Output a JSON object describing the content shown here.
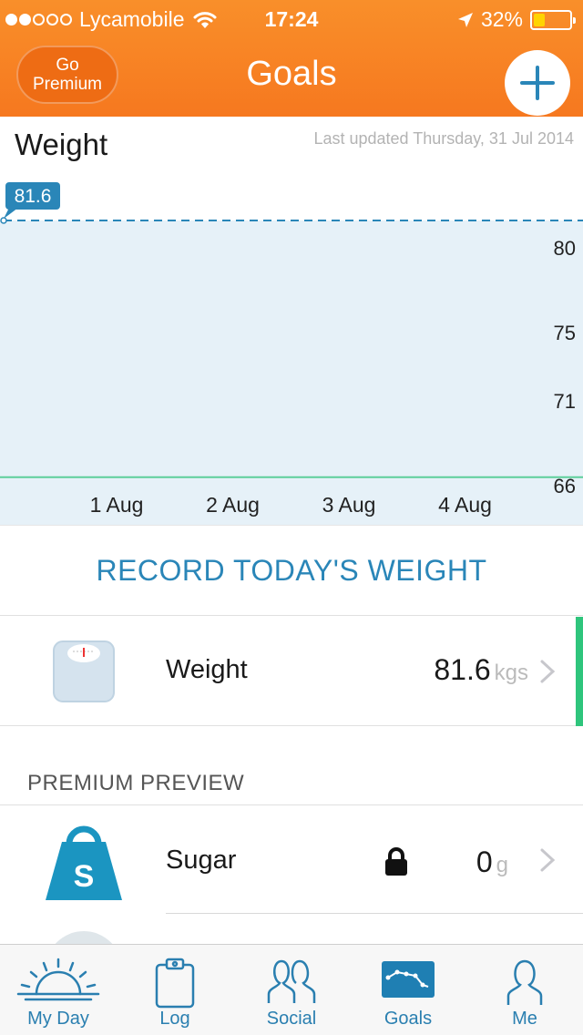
{
  "status_bar": {
    "carrier": "Lycamobile",
    "time": "17:24",
    "battery": "32%",
    "battery_level": 0.32
  },
  "nav": {
    "premium_label_line1": "Go",
    "premium_label_line2": "Premium",
    "title": "Goals"
  },
  "chart": {
    "title": "Weight",
    "last_updated": "Last updated Thursday, 31 Jul 2014",
    "current_label": "81.6"
  },
  "chart_data": {
    "type": "line",
    "categories": [
      "1 Aug",
      "2 Aug",
      "3 Aug",
      "4 Aug"
    ],
    "y_ticks": [
      80,
      75,
      71,
      66
    ],
    "y_labels": [
      "80",
      "75",
      "71",
      "66"
    ],
    "current_value": 81.6,
    "goal_value": 66.5,
    "ylim": [
      63.7,
      81.6
    ],
    "grid": false,
    "colors": {
      "line": "#2a86b8",
      "fill": "#e6f1f8",
      "goal": "#5dcf9a"
    }
  },
  "record_button": "RECORD TODAY'S WEIGHT",
  "weight_row": {
    "label": "Weight",
    "value": "81.6",
    "unit": "kgs"
  },
  "premium_section": {
    "header": "PREMIUM PREVIEW",
    "sugar": {
      "label": "Sugar",
      "value": "0",
      "unit": "g",
      "badge": "S"
    }
  },
  "tabs": [
    {
      "label": "My Day",
      "icon": "sunrise-icon"
    },
    {
      "label": "Log",
      "icon": "clipboard-icon"
    },
    {
      "label": "Social",
      "icon": "people-icon"
    },
    {
      "label": "Goals",
      "icon": "chart-icon"
    },
    {
      "label": "Me",
      "icon": "person-icon"
    }
  ],
  "colors": {
    "brand": "#f6781f",
    "accent": "#2a86b8",
    "success": "#2fc57c"
  }
}
